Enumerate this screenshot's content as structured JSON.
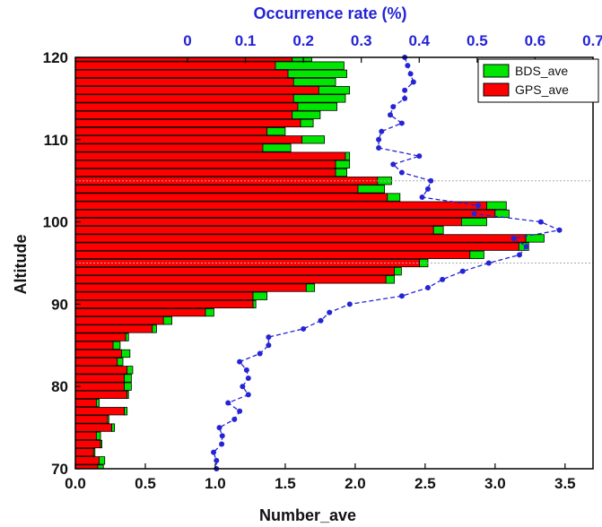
{
  "chart_data": {
    "type": "bar",
    "orientation": "horizontal",
    "stacked": true,
    "xlabel": "Number_ave",
    "ylabel": "Altitude",
    "top_xlabel": "Occurrence rate (%)",
    "xlim": [
      0,
      3.7
    ],
    "ylim": [
      70,
      120
    ],
    "top_xlim": [
      0,
      0.7
    ],
    "xticks": [
      "0.0",
      "0.5",
      "1.0",
      "1.5",
      "2.0",
      "2.5",
      "3.0",
      "3.5"
    ],
    "yticks": [
      "70",
      "80",
      "90",
      "100",
      "110",
      "120"
    ],
    "top_xticks": [
      "0",
      "0.1",
      "0.2",
      "0.3",
      "0.4",
      "0.5",
      "0.6",
      "0.7"
    ],
    "reference_lines_y": [
      95,
      105
    ],
    "legend_position": "top-right",
    "altitude": [
      120,
      119,
      118,
      117,
      116,
      115,
      114,
      113,
      112,
      111,
      110,
      109,
      108,
      107,
      106,
      105,
      104,
      103,
      102,
      101,
      100,
      99,
      98,
      97,
      96,
      95,
      94,
      93,
      92,
      91,
      90,
      89,
      88,
      87,
      86,
      85,
      84,
      83,
      82,
      81,
      80,
      79,
      78,
      77,
      76,
      75,
      74,
      73,
      72,
      71,
      70
    ],
    "series": [
      {
        "name": "GPS_ave",
        "color": "#ff0000",
        "values": [
          1.55,
          1.43,
          1.52,
          1.56,
          1.74,
          1.56,
          1.59,
          1.55,
          1.61,
          1.37,
          1.62,
          1.34,
          1.93,
          1.86,
          1.86,
          2.16,
          2.02,
          2.23,
          2.94,
          3.0,
          2.76,
          2.56,
          3.22,
          3.17,
          2.82,
          2.46,
          2.28,
          2.22,
          1.65,
          1.27,
          1.27,
          0.93,
          0.63,
          0.55,
          0.36,
          0.27,
          0.33,
          0.3,
          0.37,
          0.35,
          0.35,
          0.37,
          0.15,
          0.35,
          0.23,
          0.26,
          0.15,
          0.18,
          0.13,
          0.17,
          0.16
        ]
      },
      {
        "name": "BDS_ave",
        "color": "#00e600",
        "values": [
          0.14,
          0.49,
          0.42,
          0.3,
          0.22,
          0.37,
          0.28,
          0.2,
          0.09,
          0.13,
          0.16,
          0.2,
          0.03,
          0.1,
          0.08,
          0.1,
          0.19,
          0.09,
          0.14,
          0.1,
          0.18,
          0.07,
          0.13,
          0.07,
          0.1,
          0.06,
          0.05,
          0.06,
          0.06,
          0.1,
          0.02,
          0.06,
          0.06,
          0.03,
          0.02,
          0.05,
          0.06,
          0.04,
          0.04,
          0.05,
          0.05,
          0.01,
          0.02,
          0.02,
          0.01,
          0.02,
          0.03,
          0.01,
          0.01,
          0.04,
          0.04
        ]
      }
    ],
    "occurrence_rate": {
      "color": "#2424d6",
      "altitude": [
        120,
        119,
        118,
        117,
        116,
        115,
        114,
        113,
        112,
        111,
        110,
        109,
        108,
        107,
        106,
        105,
        104,
        103,
        102,
        101,
        100,
        99,
        98,
        97,
        96,
        95,
        94,
        93,
        92,
        91,
        90,
        89,
        88,
        87,
        86,
        85,
        84,
        83,
        82,
        81,
        80,
        79,
        78,
        77,
        76,
        75,
        74,
        73,
        72,
        71,
        70
      ],
      "values": [
        0.375,
        0.38,
        0.385,
        0.39,
        0.375,
        0.375,
        0.355,
        0.35,
        0.37,
        0.335,
        0.33,
        0.33,
        0.4,
        0.355,
        0.37,
        0.42,
        0.415,
        0.405,
        0.502,
        0.495,
        0.61,
        0.642,
        0.563,
        0.585,
        0.573,
        0.52,
        0.475,
        0.44,
        0.415,
        0.37,
        0.28,
        0.245,
        0.23,
        0.2,
        0.14,
        0.14,
        0.125,
        0.09,
        0.102,
        0.105,
        0.095,
        0.105,
        0.07,
        0.09,
        0.081,
        0.055,
        0.06,
        0.059,
        0.045,
        0.05,
        0.05
      ]
    }
  }
}
